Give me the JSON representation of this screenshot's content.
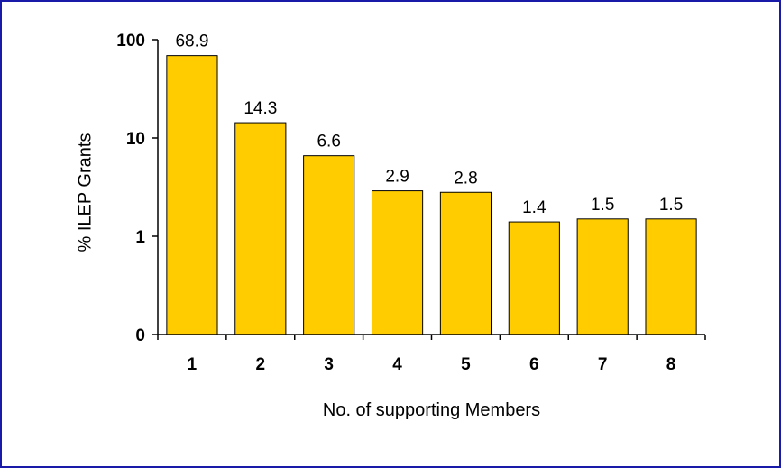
{
  "chart_data": {
    "type": "bar",
    "title": "",
    "xlabel": "No. of supporting Members",
    "ylabel": "% ILEP Grants",
    "yscale": "log",
    "ylim": [
      0.1,
      100
    ],
    "yticks": [
      0.1,
      1,
      10,
      100
    ],
    "ytick_labels": [
      "0",
      "1",
      "10",
      "100"
    ],
    "categories": [
      "1",
      "2",
      "3",
      "4",
      "5",
      "6",
      "7",
      "8"
    ],
    "values": [
      68.9,
      14.3,
      6.6,
      2.9,
      2.8,
      1.4,
      1.5,
      1.5
    ],
    "data_labels": [
      "68.9",
      "14.3",
      "6.6",
      "2.9",
      "2.8",
      "1.4",
      "1.5",
      "1.5"
    ],
    "bar_color": "#FFCC00",
    "bar_edge_color": "#000000",
    "frame_color": "#1A1AA8",
    "grid": false,
    "legend": "none"
  }
}
